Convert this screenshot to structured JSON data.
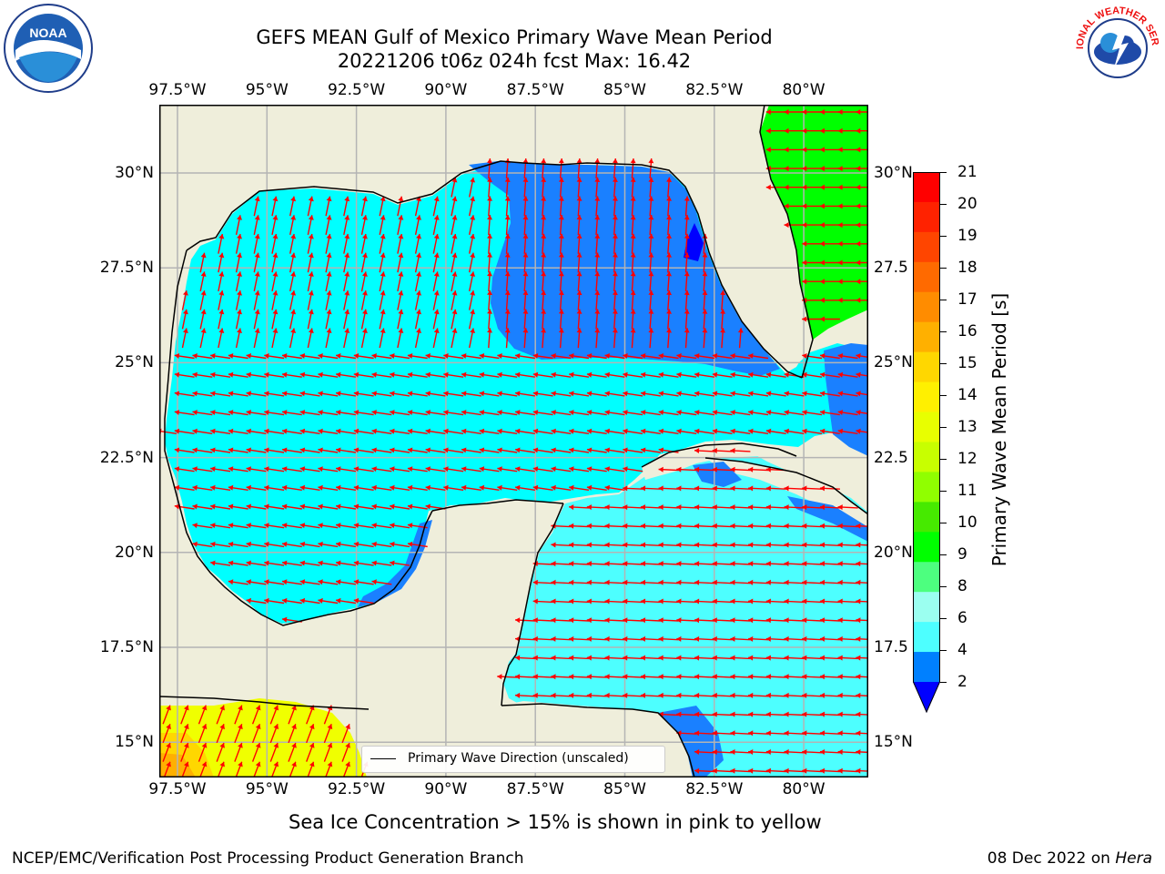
{
  "title_line1": "GEFS MEAN Gulf of Mexico Primary Wave Mean Period",
  "title_line2": "20221206 t06z 024h fcst   Max: 16.42",
  "lon_ticks": [
    "97.5°W",
    "95°W",
    "92.5°W",
    "90°W",
    "87.5°W",
    "85°W",
    "82.5°W",
    "80°W"
  ],
  "lat_ticks": [
    "30°N",
    "27.5°N",
    "25°N",
    "22.5°N",
    "20°N",
    "17.5°N",
    "15°N"
  ],
  "lat_ticks_right": [
    "30°N",
    "27.5",
    "25°N",
    "22.5",
    "20°N",
    "17.5",
    "15°N"
  ],
  "colorbar": {
    "title": "Primary Wave Mean Period [s]",
    "labels": [
      "21",
      "20",
      "19",
      "18",
      "17",
      "16",
      "15",
      "14",
      "13",
      "12",
      "11",
      "10",
      "9",
      "8",
      "6",
      "4",
      "2"
    ],
    "colors": [
      "#ff0000",
      "#ff2200",
      "#ff4500",
      "#ff6a00",
      "#ff8c00",
      "#ffb000",
      "#ffd700",
      "#fff000",
      "#e8ff00",
      "#c8ff00",
      "#90ff00",
      "#46ea00",
      "#00ff00",
      "#4dff7f",
      "#9bfff0",
      "#4dffff",
      "#00ffff",
      "#0080ff"
    ],
    "extend_color": "#0000ff"
  },
  "legend_label": "Primary Wave Direction (unscaled)",
  "caption": "Sea Ice Concentration > 15% is shown in pink to yellow",
  "footer_left": "NCEP/EMC/Verification Post Processing Product Generation Branch",
  "footer_right_prefix": "08 Dec 2022 on ",
  "footer_right_host": "Hera",
  "colors": {
    "land": "#efeedb",
    "ocean_4_6": "#00ffff",
    "ocean_6_8": "#4dffff",
    "ocean_2_4": "#1a80ff",
    "ocean_below_2": "#0000ff",
    "period_10_11": "#00ff00",
    "period_14_15": "#f0ff00",
    "period_15_16": "#ffd700",
    "period_16_17": "#ffb000",
    "arrow": "#ff0000",
    "grid": "#b4b4b4"
  },
  "logos": {
    "noaa_text": "NOAA",
    "nws_text": "NATIONAL WEATHER SERVICE"
  }
}
